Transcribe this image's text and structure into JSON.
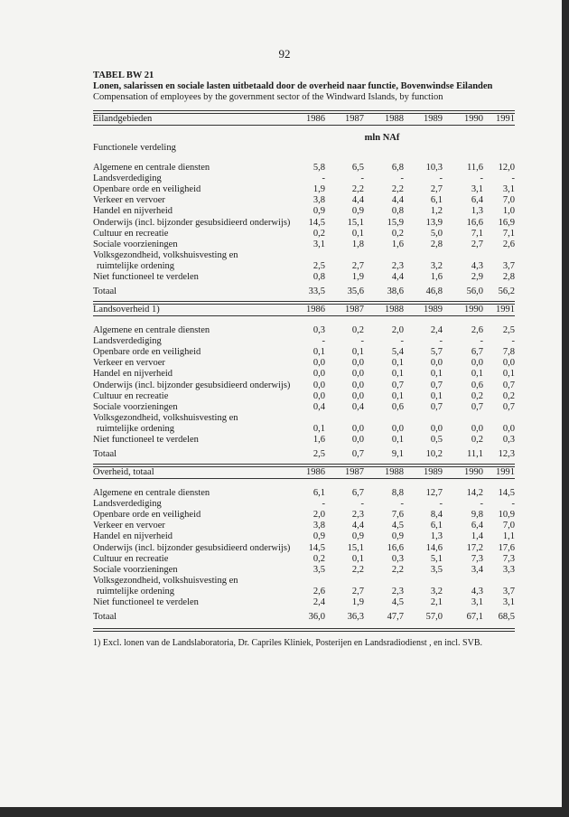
{
  "page_number": "92",
  "table_id": "TABEL BW 21",
  "title_nl": "Lonen, salarissen en sociale lasten uitbetaald door de overheid naar functie, Bovenwindse Eilanden",
  "title_en": "Compensation of employees by the government sector of the Windward Islands, by function",
  "years": [
    "1986",
    "1987",
    "1988",
    "1989",
    "1990",
    "1991"
  ],
  "unit": "mln NAf",
  "group_label": "Functionele verdeling",
  "footnote": "1) Excl. lonen van de Landslaboratoria, Dr. Capriles Kliniek, Posterijen en Landsradiodienst , en incl. SVB.",
  "sections": [
    {
      "header": "Eilandgebieden",
      "rows": [
        {
          "label": "Algemene en centrale diensten",
          "values": [
            "5,8",
            "6,5",
            "6,8",
            "10,3",
            "11,6",
            "12,0"
          ]
        },
        {
          "label": "Landsverdediging",
          "values": [
            "-",
            "-",
            "-",
            "-",
            "-",
            "-"
          ]
        },
        {
          "label": "Openbare orde en veiligheid",
          "values": [
            "1,9",
            "2,2",
            "2,2",
            "2,7",
            "3,1",
            "3,1"
          ]
        },
        {
          "label": "Verkeer en vervoer",
          "values": [
            "3,8",
            "4,4",
            "4,4",
            "6,1",
            "6,4",
            "7,0"
          ]
        },
        {
          "label": "Handel en nijverheid",
          "values": [
            "0,9",
            "0,9",
            "0,8",
            "1,2",
            "1,3",
            "1,0"
          ]
        },
        {
          "label": "Onderwijs (incl. bijzonder gesubsidieerd onderwijs)",
          "values": [
            "14,5",
            "15,1",
            "15,9",
            "13,9",
            "16,6",
            "16,9"
          ]
        },
        {
          "label": "Cultuur en recreatie",
          "values": [
            "0,2",
            "0,1",
            "0,2",
            "5,0",
            "7,1",
            "7,1"
          ]
        },
        {
          "label": "Sociale voorzieningen",
          "values": [
            "3,1",
            "1,8",
            "1,6",
            "2,8",
            "2,7",
            "2,6"
          ]
        },
        {
          "label": "Volksgezondheid, volkshuisvesting en",
          "values": []
        },
        {
          "label": "ruimtelijke ordening",
          "indent": true,
          "values": [
            "2,5",
            "2,7",
            "2,3",
            "3,2",
            "4,3",
            "3,7"
          ]
        },
        {
          "label": "Niet functioneel te verdelen",
          "values": [
            "0,8",
            "1,9",
            "4,4",
            "1,6",
            "2,9",
            "2,8"
          ]
        }
      ],
      "total": {
        "label": "Totaal",
        "values": [
          "33,5",
          "35,6",
          "38,6",
          "46,8",
          "56,0",
          "56,2"
        ]
      }
    },
    {
      "header": "Landsoverheid 1)",
      "rows": [
        {
          "label": "Algemene en centrale diensten",
          "values": [
            "0,3",
            "0,2",
            "2,0",
            "2,4",
            "2,6",
            "2,5"
          ]
        },
        {
          "label": "Landsverdediging",
          "values": [
            "-",
            "-",
            "-",
            "-",
            "-",
            "-"
          ]
        },
        {
          "label": "Openbare orde en veiligheid",
          "values": [
            "0,1",
            "0,1",
            "5,4",
            "5,7",
            "6,7",
            "7,8"
          ]
        },
        {
          "label": "Verkeer en vervoer",
          "values": [
            "0,0",
            "0,0",
            "0,1",
            "0,0",
            "0,0",
            "0,0"
          ]
        },
        {
          "label": "Handel en nijverheid",
          "values": [
            "0,0",
            "0,0",
            "0,1",
            "0,1",
            "0,1",
            "0,1"
          ]
        },
        {
          "label": "Onderwijs (incl. bijzonder gesubsidieerd onderwijs)",
          "values": [
            "0,0",
            "0,0",
            "0,7",
            "0,7",
            "0,6",
            "0,7"
          ]
        },
        {
          "label": "Cultuur en recreatie",
          "values": [
            "0,0",
            "0,0",
            "0,1",
            "0,1",
            "0,2",
            "0,2"
          ]
        },
        {
          "label": "Sociale voorzieningen",
          "values": [
            "0,4",
            "0,4",
            "0,6",
            "0,7",
            "0,7",
            "0,7"
          ]
        },
        {
          "label": "Volksgezondheid, volkshuisvesting en",
          "values": []
        },
        {
          "label": "ruimtelijke ordening",
          "indent": true,
          "values": [
            "0,1",
            "0,0",
            "0,0",
            "0,0",
            "0,0",
            "0,0"
          ]
        },
        {
          "label": "Niet functioneel te verdelen",
          "values": [
            "1,6",
            "0,0",
            "0,1",
            "0,5",
            "0,2",
            "0,3"
          ]
        }
      ],
      "total": {
        "label": "Totaal",
        "values": [
          "2,5",
          "0,7",
          "9,1",
          "10,2",
          "11,1",
          "12,3"
        ]
      }
    },
    {
      "header": "Overheid, totaal",
      "rows": [
        {
          "label": "Algemene en centrale diensten",
          "values": [
            "6,1",
            "6,7",
            "8,8",
            "12,7",
            "14,2",
            "14,5"
          ]
        },
        {
          "label": "Landsverdediging",
          "values": [
            "-",
            "-",
            "-",
            "-",
            "-",
            "-"
          ]
        },
        {
          "label": "Openbare orde en veiligheid",
          "values": [
            "2,0",
            "2,3",
            "7,6",
            "8,4",
            "9,8",
            "10,9"
          ]
        },
        {
          "label": "Verkeer en vervoer",
          "values": [
            "3,8",
            "4,4",
            "4,5",
            "6,1",
            "6,4",
            "7,0"
          ]
        },
        {
          "label": "Handel en nijverheid",
          "values": [
            "0,9",
            "0,9",
            "0,9",
            "1,3",
            "1,4",
            "1,1"
          ]
        },
        {
          "label": "Onderwijs (incl. bijzonder gesubsidieerd onderwijs)",
          "values": [
            "14,5",
            "15,1",
            "16,6",
            "14,6",
            "17,2",
            "17,6"
          ]
        },
        {
          "label": "Cultuur en recreatie",
          "values": [
            "0,2",
            "0,1",
            "0,3",
            "5,1",
            "7,3",
            "7,3"
          ]
        },
        {
          "label": "Sociale voorzieningen",
          "values": [
            "3,5",
            "2,2",
            "2,2",
            "3,5",
            "3,4",
            "3,3"
          ]
        },
        {
          "label": "Volksgezondheid, volkshuisvesting en",
          "values": []
        },
        {
          "label": "ruimtelijke ordening",
          "indent": true,
          "values": [
            "2,6",
            "2,7",
            "2,3",
            "3,2",
            "4,3",
            "3,7"
          ]
        },
        {
          "label": "Niet functioneel te verdelen",
          "values": [
            "2,4",
            "1,9",
            "4,5",
            "2,1",
            "3,1",
            "3,1"
          ]
        }
      ],
      "total": {
        "label": "Totaal",
        "values": [
          "36,0",
          "36,3",
          "47,7",
          "57,0",
          "67,1",
          "68,5"
        ]
      }
    }
  ]
}
